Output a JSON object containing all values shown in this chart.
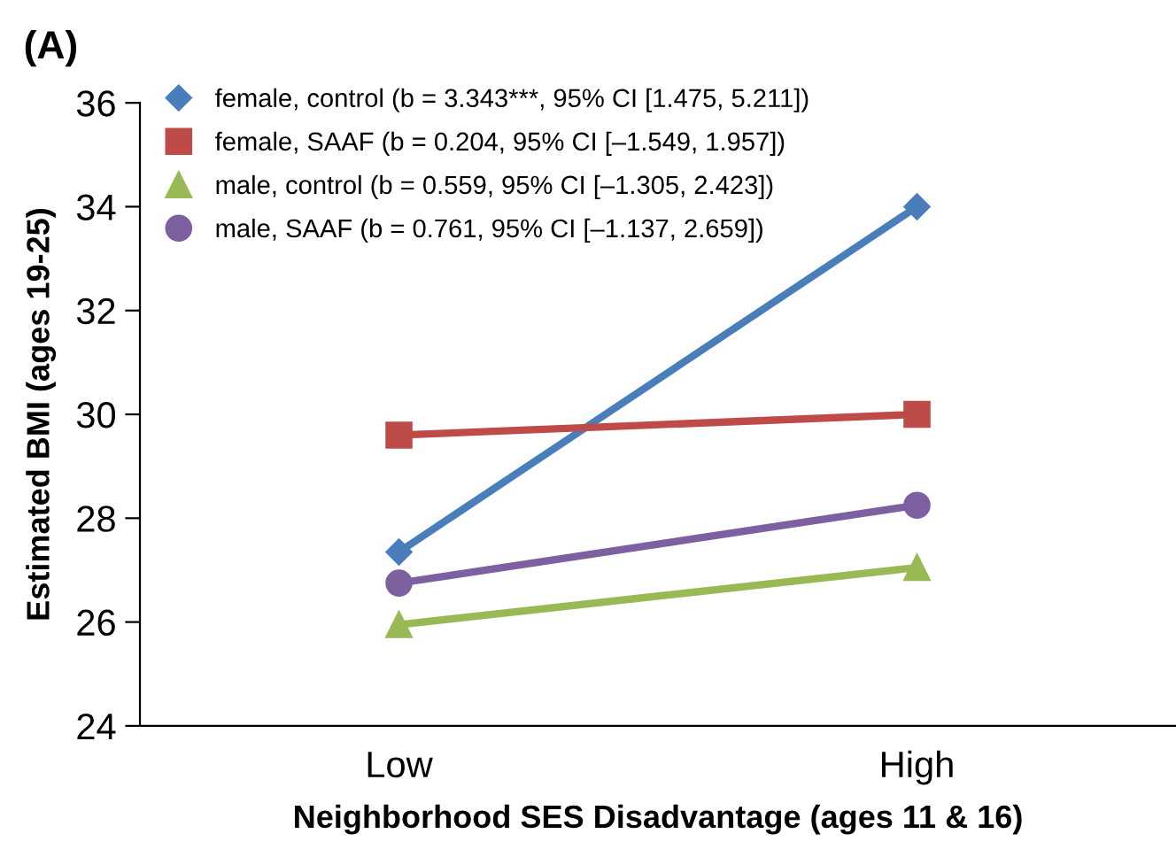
{
  "chart_data": {
    "type": "line",
    "title": "(A)",
    "xlabel": "Neighborhood SES Disadvantage (ages 11 & 16)",
    "ylabel": "Estimated BMI (ages 19-25)",
    "categories": [
      "Low",
      "High"
    ],
    "series": [
      {
        "name": "female, control (b = 3.343***, 95% CI [1.475, 5.211])",
        "color": "#4a7ebb",
        "marker": "diamond",
        "values": [
          27.35,
          34.0
        ]
      },
      {
        "name": "female, SAAF (b = 0.204, 95% CI [–1.549, 1.957])",
        "color": "#be4b48",
        "marker": "square",
        "values": [
          29.6,
          30.0
        ]
      },
      {
        "name": "male, control (b = 0.559, 95% CI [–1.305, 2.423])",
        "color": "#98b954",
        "marker": "triangle",
        "values": [
          25.95,
          27.05
        ]
      },
      {
        "name": "male, SAAF (b = 0.761, 95% CI [–1.137, 2.659])",
        "color": "#7d60a0",
        "marker": "circle",
        "values": [
          26.75,
          28.25
        ]
      }
    ],
    "ylim": [
      24,
      36
    ],
    "yticks": [
      24,
      26,
      28,
      30,
      32,
      34,
      36
    ],
    "grid": false,
    "legend": "top left",
    "line_style": "solid"
  }
}
